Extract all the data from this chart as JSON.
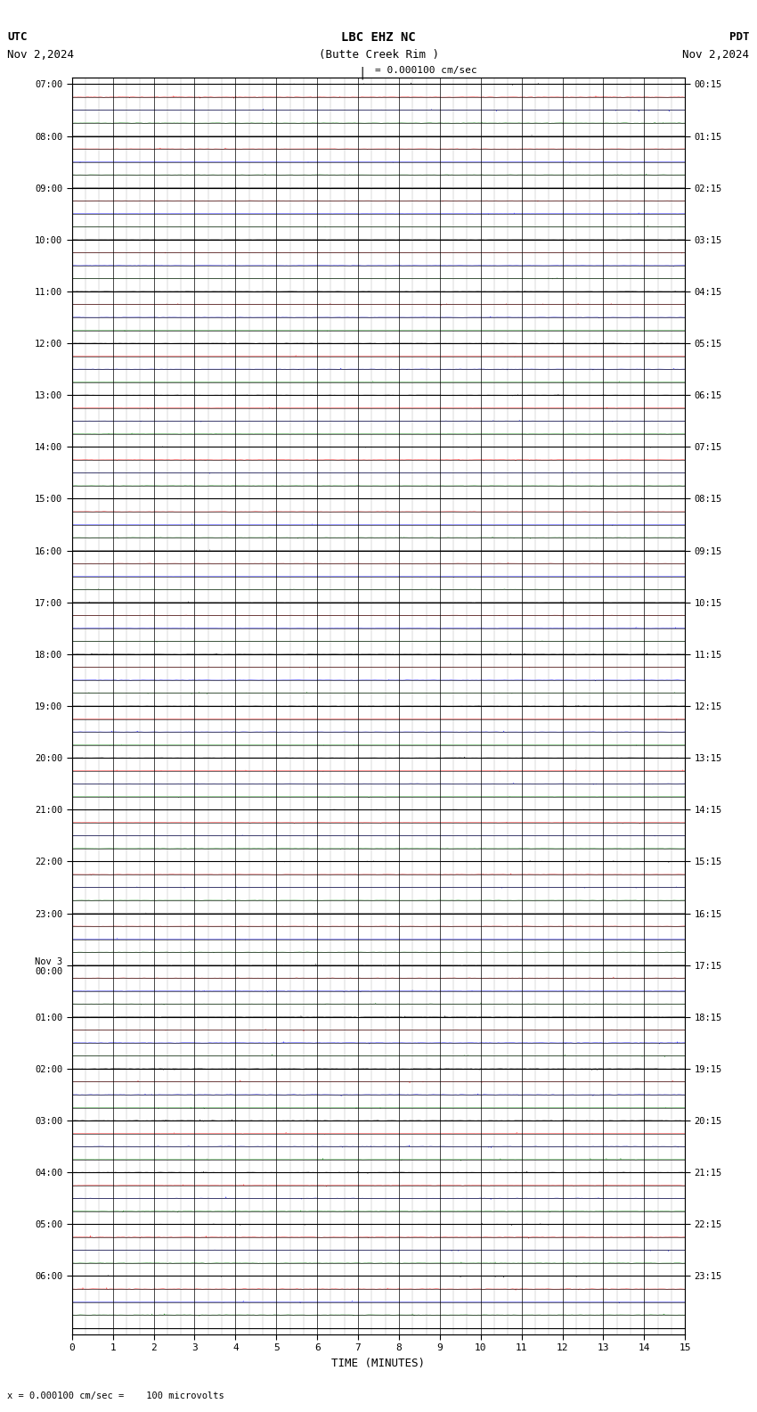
{
  "title_line1": "LBC EHZ NC",
  "title_line2": "(Butte Creek Rim )",
  "scale_label": "= 0.000100 cm/sec",
  "left_label_top": "UTC",
  "left_label_date": "Nov 2,2024",
  "right_label_top": "PDT",
  "right_label_date": "Nov 2,2024",
  "bottom_label": "TIME (MINUTES)",
  "footer_label": "= 0.000100 cm/sec =    100 microvolts",
  "xlabel_ticks": [
    0,
    1,
    2,
    3,
    4,
    5,
    6,
    7,
    8,
    9,
    10,
    11,
    12,
    13,
    14,
    15
  ],
  "bg_color": "#ffffff",
  "grid_major_color": "#000000",
  "grid_minor_color": "#aaaaaa",
  "trace_black": "#000000",
  "trace_red": "#ff0000",
  "trace_blue": "#0000ff",
  "trace_green": "#008000",
  "fig_width": 8.5,
  "fig_height": 15.84,
  "dpi": 100,
  "num_hour_blocks": 24,
  "traces_per_block": 4,
  "utc_start": "07:00",
  "pdt_start": "00:15",
  "nov3_label_block": 17,
  "row_labels_left": [
    "07:00",
    "08:00",
    "09:00",
    "10:00",
    "11:00",
    "12:00",
    "13:00",
    "14:00",
    "15:00",
    "16:00",
    "17:00",
    "18:00",
    "19:00",
    "20:00",
    "21:00",
    "22:00",
    "23:00",
    "Nov 3\n00:00",
    "01:00",
    "02:00",
    "03:00",
    "04:00",
    "05:00",
    "06:00"
  ],
  "row_labels_right": [
    "00:15",
    "01:15",
    "02:15",
    "03:15",
    "04:15",
    "05:15",
    "06:15",
    "07:15",
    "08:15",
    "09:15",
    "10:15",
    "11:15",
    "12:15",
    "13:15",
    "14:15",
    "15:15",
    "16:15",
    "17:15",
    "18:15",
    "19:15",
    "20:15",
    "21:15",
    "22:15",
    "23:15"
  ]
}
